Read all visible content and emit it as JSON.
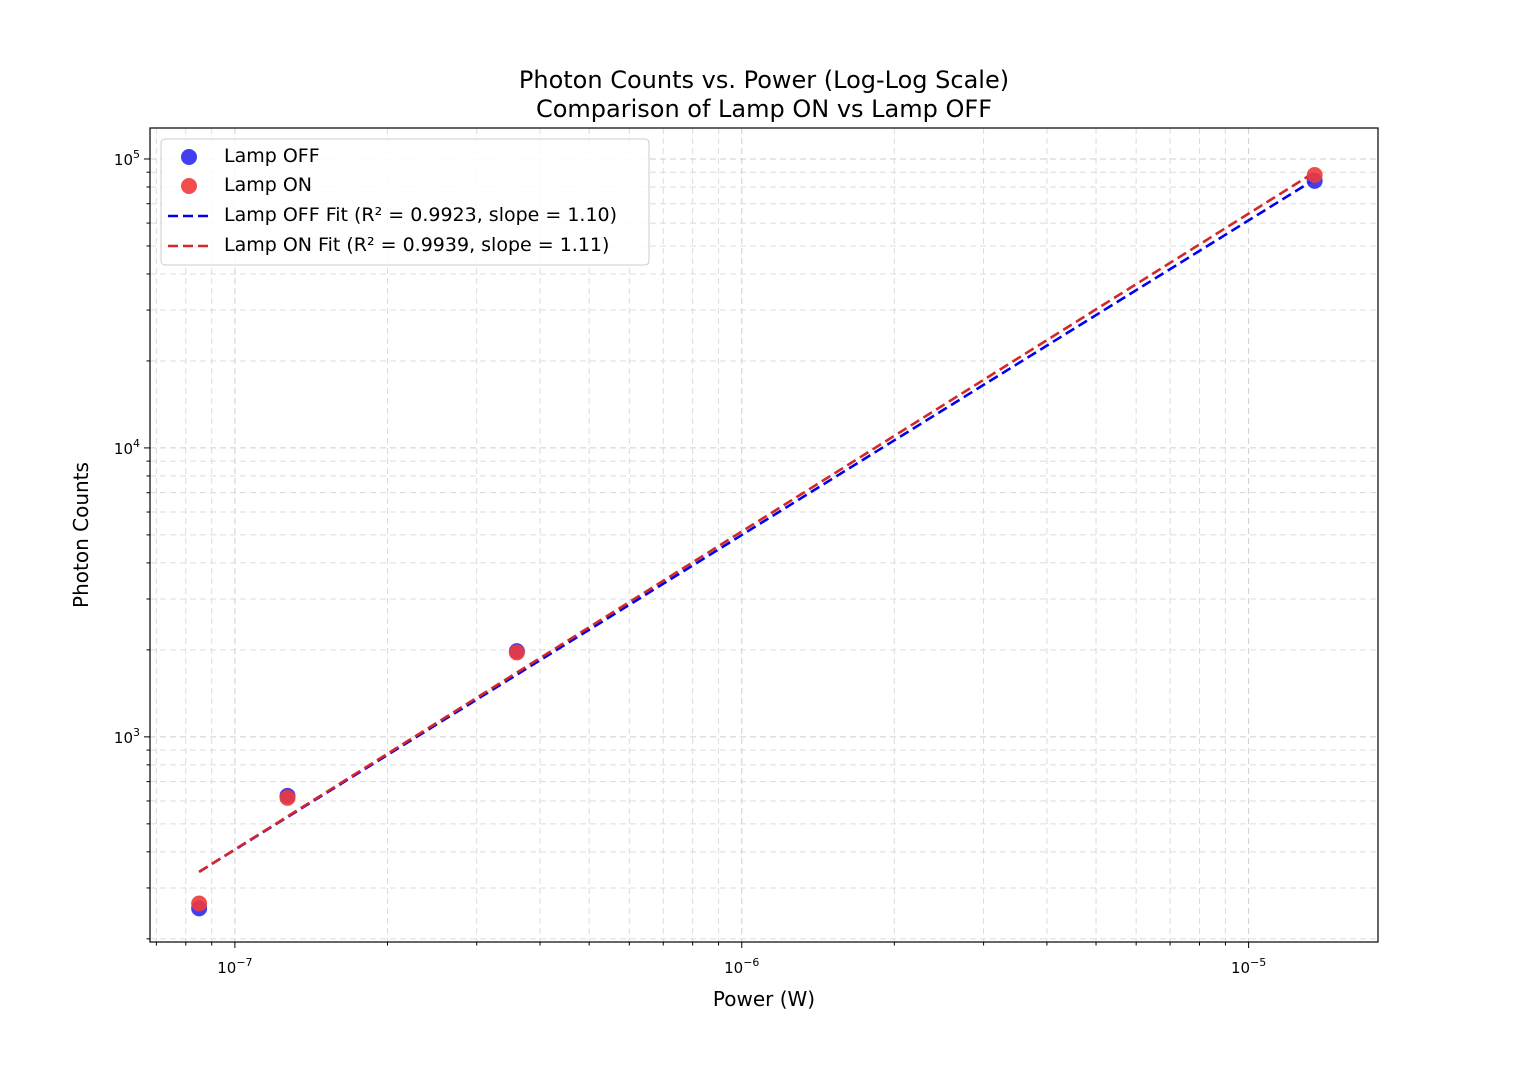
{
  "chart_data": {
    "type": "scatter",
    "title": "Photon Counts vs. Power (Log-Log Scale)",
    "subtitle": "Comparison of Lamp ON vs Lamp OFF",
    "xlabel": "Power (W)",
    "ylabel": "Photon Counts",
    "x_scale": "log",
    "y_scale": "log",
    "xlim": [
      6.8e-08,
      1.8e-05
    ],
    "ylim": [
      195,
      128000
    ],
    "grid": true,
    "legend_position": "top-left",
    "x_ticks": [
      {
        "value": 1e-07,
        "mantissa": "10",
        "exponent": "−7"
      },
      {
        "value": 1e-06,
        "mantissa": "10",
        "exponent": "−6"
      },
      {
        "value": 1e-05,
        "mantissa": "10",
        "exponent": "−5"
      }
    ],
    "y_ticks": [
      {
        "value": 1000,
        "mantissa": "10",
        "exponent": "3"
      },
      {
        "value": 10000,
        "mantissa": "10",
        "exponent": "4"
      },
      {
        "value": 100000,
        "mantissa": "10",
        "exponent": "5"
      }
    ],
    "series": [
      {
        "name": "Lamp OFF",
        "kind": "scatter",
        "color": "#2b2bf0",
        "x": [
          8.5e-08,
          1.27e-07,
          3.6e-07,
          1.35e-05
        ],
        "y": [
          255,
          625,
          1980,
          84000
        ]
      },
      {
        "name": "Lamp ON",
        "kind": "scatter",
        "color": "#ee3b3b",
        "x": [
          8.5e-08,
          1.27e-07,
          3.6e-07,
          1.35e-05
        ],
        "y": [
          265,
          615,
          1960,
          88000
        ]
      },
      {
        "name": "Lamp OFF Fit (R² = 0.9923, slope = 1.10)",
        "kind": "line",
        "style": "dashed",
        "color": "#0000ee",
        "x": [
          8.5e-08,
          1.35e-05
        ],
        "y": [
          341,
          85000
        ]
      },
      {
        "name": "Lamp ON Fit (R² = 0.9939, slope = 1.11)",
        "kind": "line",
        "style": "dashed",
        "color": "#d62728",
        "x": [
          8.5e-08,
          1.35e-05
        ],
        "y": [
          341,
          90000
        ]
      }
    ]
  }
}
